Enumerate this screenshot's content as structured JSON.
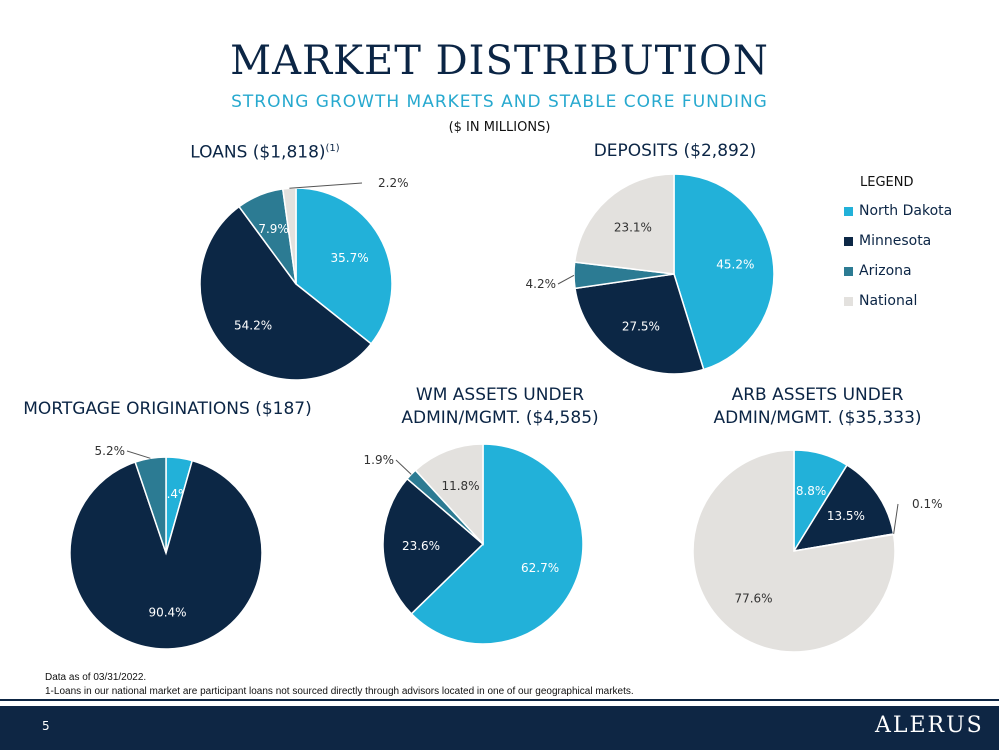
{
  "header": {
    "title": "MARKET DISTRIBUTION",
    "subtitle": "STRONG GROWTH MARKETS AND STABLE CORE FUNDING",
    "units": "($ IN MILLIONS)"
  },
  "legend": {
    "title": "LEGEND",
    "items": [
      "North Dakota",
      "Minnesota",
      "Arizona",
      "National"
    ]
  },
  "colors": {
    "north_dakota": "#22b1d9",
    "minnesota": "#0c2745",
    "arizona": "#2c7b93",
    "national": "#e3e1de"
  },
  "charts_titles": {
    "loans": "LOANS ($1,818)",
    "loans_sup": "(1)",
    "deposits": "DEPOSITS ($2,892)",
    "mortgage": "MORTGAGE ORIGINATIONS ($187)",
    "wm_line1": "WM ASSETS UNDER",
    "wm_line2": "ADMIN/MGMT. ($4,585)",
    "arb_line1": "ARB ASSETS UNDER",
    "arb_line2": "ADMIN/MGMT. ($35,333)"
  },
  "chart_data": [
    {
      "type": "pie",
      "title": "LOANS ($1,818)",
      "categories": [
        "North Dakota",
        "Minnesota",
        "Arizona",
        "National"
      ],
      "values": [
        35.7,
        54.2,
        7.9,
        2.2
      ],
      "labels": [
        "35.7%",
        "54.2%",
        "7.9%",
        "2.2%"
      ]
    },
    {
      "type": "pie",
      "title": "DEPOSITS ($2,892)",
      "categories": [
        "North Dakota",
        "Minnesota",
        "Arizona",
        "National"
      ],
      "values": [
        45.2,
        27.5,
        4.2,
        23.1
      ],
      "labels": [
        "45.2%",
        "27.5%",
        "4.2%",
        "23.1%"
      ]
    },
    {
      "type": "pie",
      "title": "MORTGAGE ORIGINATIONS ($187)",
      "categories": [
        "North Dakota",
        "Minnesota",
        "Arizona"
      ],
      "values": [
        4.4,
        90.4,
        5.2
      ],
      "labels": [
        "4.4%",
        "90.4%",
        "5.2%"
      ]
    },
    {
      "type": "pie",
      "title": "WM ASSETS UNDER ADMIN/MGMT. ($4,585)",
      "categories": [
        "North Dakota",
        "Minnesota",
        "Arizona",
        "National"
      ],
      "values": [
        62.7,
        23.6,
        1.9,
        11.8
      ],
      "labels": [
        "62.7%",
        "23.6%",
        "1.9%",
        "11.8%"
      ]
    },
    {
      "type": "pie",
      "title": "ARB ASSETS UNDER ADMIN/MGMT. ($35,333)",
      "categories": [
        "North Dakota",
        "Minnesota",
        "Arizona",
        "National"
      ],
      "values": [
        8.8,
        13.5,
        0.1,
        77.6
      ],
      "labels": [
        "8.8%",
        "13.5%",
        "0.1%",
        "77.6%"
      ]
    }
  ],
  "footnotes": {
    "line1": "Data as of 03/31/2022.",
    "line2": "1-Loans in our national market are participant loans not sourced directly through advisors located in one of our geographical markets."
  },
  "footer": {
    "page_number": "5",
    "logo_text": "ALERUS"
  }
}
